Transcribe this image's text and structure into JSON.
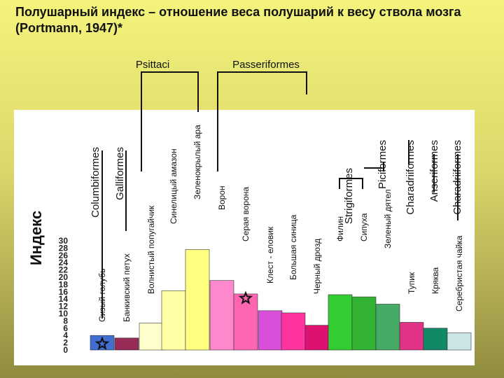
{
  "title": "Полушарный индекс – отношение веса полушарий к весу ствола мозга  (Portmann, 1947)*",
  "chart_data": {
    "type": "bar",
    "ylabel": "Индекс",
    "ylim": [
      0,
      30
    ],
    "yticks": [
      0,
      2,
      4,
      6,
      8,
      10,
      12,
      14,
      16,
      18,
      20,
      22,
      24,
      26,
      28,
      30
    ],
    "grid": false,
    "legend": "none",
    "categories": [
      "Сизый голубь",
      "Банкивский петух",
      "Волнистый попугайчик",
      "Синелицый амазон",
      "Зеленокрылый ара",
      "Ворон",
      "Серая ворона",
      "Клест - еловик",
      "Большая синица",
      "Черный дрозд",
      "Филин",
      "Сипуха",
      "Зеленый дятел",
      "Тупик",
      "Кряква",
      "Серебристая чайка"
    ],
    "values": [
      4.0,
      3.3,
      7.4,
      16.3,
      27.6,
      19.1,
      15.4,
      10.8,
      10.2,
      6.8,
      15.2,
      14.6,
      12.6,
      7.6,
      6.0,
      4.7
    ],
    "colors": [
      "#3f6fd1",
      "#962c56",
      "#ffffcc",
      "#ffffa6",
      "#ffff80",
      "#ff88cc",
      "#ff66b2",
      "#d94fd9",
      "#ff33a0",
      "#dd1170",
      "#33cc33",
      "#33b333",
      "#44aa66",
      "#e03385",
      "#118866",
      "#cce6e6"
    ],
    "orders": [
      {
        "label": "Columbiformes"
      },
      {
        "label": "Galliformes"
      },
      {
        "label": "Psittaci"
      },
      {
        "label": "Passeriformes"
      },
      {
        "label": "Strigiformes"
      },
      {
        "label": "Piciformes"
      },
      {
        "label": "Charadriiformes"
      },
      {
        "label": "Anseriformes"
      },
      {
        "label": "Charadriiformes"
      }
    ],
    "stars": [
      {
        "category": "Сизый голубь",
        "value": 1.7
      },
      {
        "category": "Серая ворона",
        "value": 14.2
      }
    ]
  }
}
